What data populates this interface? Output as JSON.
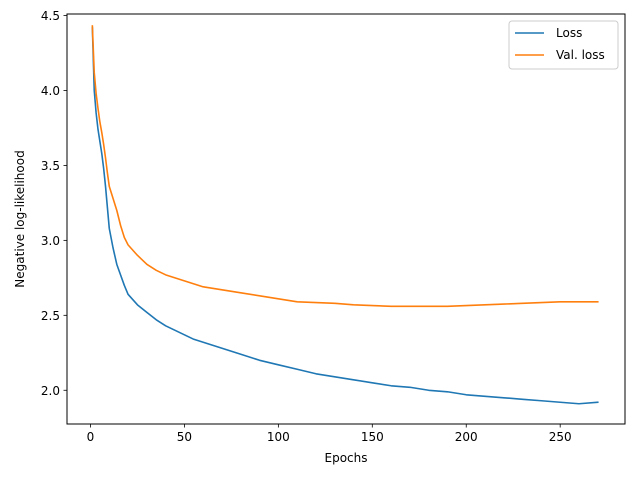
{
  "chart_data": {
    "type": "line",
    "title": "",
    "xlabel": "Epochs",
    "ylabel": "Negative log-likelihood",
    "xlim": [
      -12.5,
      284.5
    ],
    "ylim": [
      1.775,
      4.51
    ],
    "xticks": [
      0,
      50,
      100,
      150,
      200,
      250
    ],
    "yticks": [
      2.0,
      2.5,
      3.0,
      3.5,
      4.0,
      4.5
    ],
    "xtick_labels": [
      "0",
      "50",
      "100",
      "150",
      "200",
      "250"
    ],
    "ytick_labels": [
      "2.0",
      "2.5",
      "3.0",
      "3.5",
      "4.0",
      "4.5"
    ],
    "grid": false,
    "legend_position": "top-right",
    "series": [
      {
        "name": "Loss",
        "color": "#1f77b4",
        "points": [
          [
            1,
            4.42
          ],
          [
            2,
            4.0
          ],
          [
            3,
            3.85
          ],
          [
            4,
            3.74
          ],
          [
            5,
            3.66
          ],
          [
            6,
            3.58
          ],
          [
            7,
            3.48
          ],
          [
            8,
            3.36
          ],
          [
            9,
            3.22
          ],
          [
            10,
            3.08
          ],
          [
            12,
            2.95
          ],
          [
            14,
            2.84
          ],
          [
            16,
            2.77
          ],
          [
            18,
            2.7
          ],
          [
            20,
            2.64
          ],
          [
            25,
            2.57
          ],
          [
            30,
            2.52
          ],
          [
            35,
            2.47
          ],
          [
            40,
            2.43
          ],
          [
            45,
            2.4
          ],
          [
            50,
            2.37
          ],
          [
            55,
            2.34
          ],
          [
            60,
            2.32
          ],
          [
            70,
            2.28
          ],
          [
            80,
            2.24
          ],
          [
            90,
            2.2
          ],
          [
            100,
            2.17
          ],
          [
            110,
            2.14
          ],
          [
            120,
            2.11
          ],
          [
            130,
            2.09
          ],
          [
            140,
            2.07
          ],
          [
            150,
            2.05
          ],
          [
            160,
            2.03
          ],
          [
            170,
            2.02
          ],
          [
            180,
            2.0
          ],
          [
            190,
            1.99
          ],
          [
            200,
            1.97
          ],
          [
            210,
            1.96
          ],
          [
            220,
            1.95
          ],
          [
            230,
            1.94
          ],
          [
            240,
            1.93
          ],
          [
            250,
            1.92
          ],
          [
            260,
            1.91
          ],
          [
            270,
            1.92
          ]
        ]
      },
      {
        "name": "Val. loss",
        "color": "#ff7f0e",
        "points": [
          [
            1,
            4.43
          ],
          [
            2,
            4.12
          ],
          [
            3,
            3.98
          ],
          [
            4,
            3.88
          ],
          [
            5,
            3.79
          ],
          [
            6,
            3.72
          ],
          [
            7,
            3.64
          ],
          [
            8,
            3.55
          ],
          [
            9,
            3.45
          ],
          [
            10,
            3.36
          ],
          [
            12,
            3.28
          ],
          [
            14,
            3.2
          ],
          [
            16,
            3.1
          ],
          [
            18,
            3.02
          ],
          [
            20,
            2.97
          ],
          [
            25,
            2.9
          ],
          [
            30,
            2.84
          ],
          [
            35,
            2.8
          ],
          [
            40,
            2.77
          ],
          [
            45,
            2.75
          ],
          [
            50,
            2.73
          ],
          [
            55,
            2.71
          ],
          [
            60,
            2.69
          ],
          [
            70,
            2.67
          ],
          [
            80,
            2.65
          ],
          [
            90,
            2.63
          ],
          [
            100,
            2.61
          ],
          [
            110,
            2.59
          ],
          [
            120,
            2.585
          ],
          [
            130,
            2.58
          ],
          [
            140,
            2.57
          ],
          [
            150,
            2.565
          ],
          [
            160,
            2.56
          ],
          [
            170,
            2.56
          ],
          [
            180,
            2.56
          ],
          [
            190,
            2.56
          ],
          [
            200,
            2.565
          ],
          [
            210,
            2.57
          ],
          [
            220,
            2.575
          ],
          [
            230,
            2.58
          ],
          [
            240,
            2.585
          ],
          [
            250,
            2.59
          ],
          [
            260,
            2.59
          ],
          [
            270,
            2.59
          ]
        ]
      }
    ]
  }
}
